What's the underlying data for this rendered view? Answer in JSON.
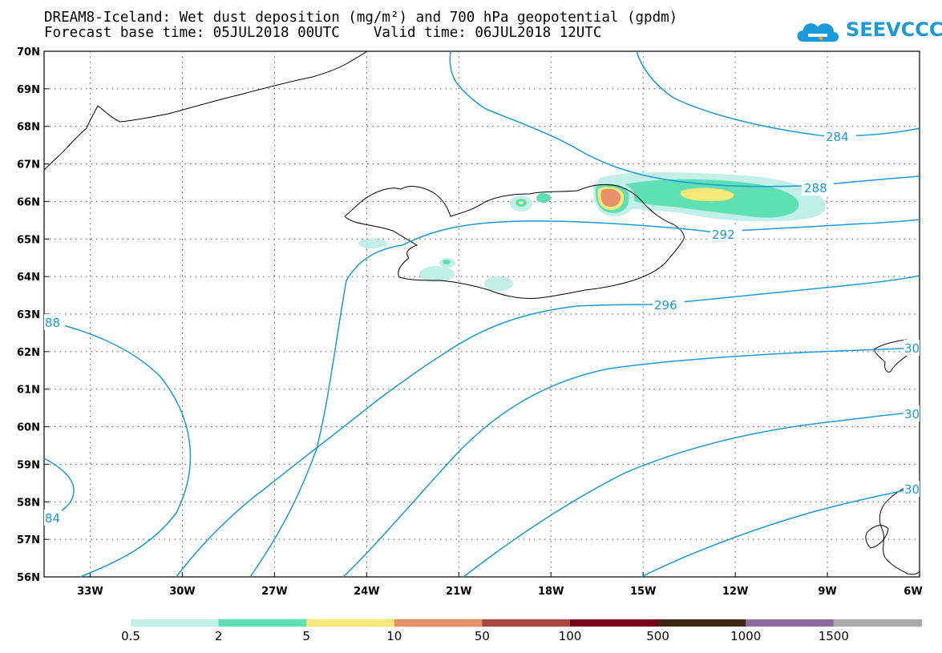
{
  "title": {
    "line1": "DREAM8-Iceland: Wet dust deposition (mg/m²) and 700 hPa geopotential (gpdm)",
    "line2": "Forecast base time: 05JUL2018 00UTC    Valid time: 06JUL2018 12UTC"
  },
  "logo": {
    "text": "SEEVCCC",
    "icon": "cloud-logo-icon",
    "color": "#1a9ad9"
  },
  "map": {
    "lat_range": [
      56,
      70
    ],
    "lon_range": [
      -34.5,
      -6
    ],
    "lat_labels": [
      "70N",
      "69N",
      "68N",
      "67N",
      "66N",
      "65N",
      "64N",
      "63N",
      "62N",
      "61N",
      "60N",
      "59N",
      "58N",
      "57N",
      "56N"
    ],
    "lon_labels": [
      "33W",
      "30W",
      "27W",
      "24W",
      "21W",
      "18W",
      "15W",
      "12W",
      "9W",
      "6W"
    ],
    "grid": "dotted",
    "contour_color": "#1a9ad9",
    "contour_labels": [
      "284",
      "288",
      "292",
      "296",
      "88",
      "84",
      "30",
      "30",
      "30"
    ]
  },
  "legend": {
    "colors": [
      "#c2f0e8",
      "#5ee0b4",
      "#f8e878",
      "#e8906a",
      "#a84840",
      "#78001c",
      "#3c2814",
      "#8c6ca0",
      "#aaaaaa"
    ],
    "labels": [
      "0.5",
      "2",
      "5",
      "10",
      "50",
      "100",
      "500",
      "1000",
      "1500"
    ]
  }
}
